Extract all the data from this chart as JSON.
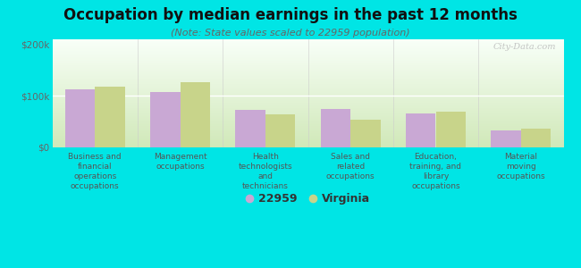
{
  "title": "Occupation by median earnings in the past 12 months",
  "subtitle": "(Note: State values scaled to 22959 population)",
  "categories": [
    "Business and\nfinancial\noperations\noccupations",
    "Management\noccupations",
    "Health\ntechnologists\nand\ntechnicians",
    "Sales and\nrelated\noccupations",
    "Education,\ntraining, and\nlibrary\noccupations",
    "Material\nmoving\noccupations"
  ],
  "values_22959": [
    113000,
    107000,
    72000,
    74000,
    66000,
    32000
  ],
  "values_virginia": [
    118000,
    127000,
    64000,
    54000,
    70000,
    36000
  ],
  "bar_color_22959": "#c9a8d4",
  "bar_color_virginia": "#c8d48a",
  "background_color": "#00e5e5",
  "plot_bg_top": "#f8fff8",
  "plot_bg_bottom": "#d0e8b8",
  "ylabel_ticks": [
    "$0",
    "$100k",
    "$200k"
  ],
  "ytick_values": [
    0,
    100000,
    200000
  ],
  "ylim": [
    0,
    210000
  ],
  "legend_label_22959": "22959",
  "legend_label_virginia": "Virginia",
  "watermark": "City-Data.com",
  "bar_width": 0.35,
  "title_fontsize": 12,
  "subtitle_fontsize": 8,
  "tick_fontsize": 7.5,
  "xlabel_fontsize": 6.5
}
